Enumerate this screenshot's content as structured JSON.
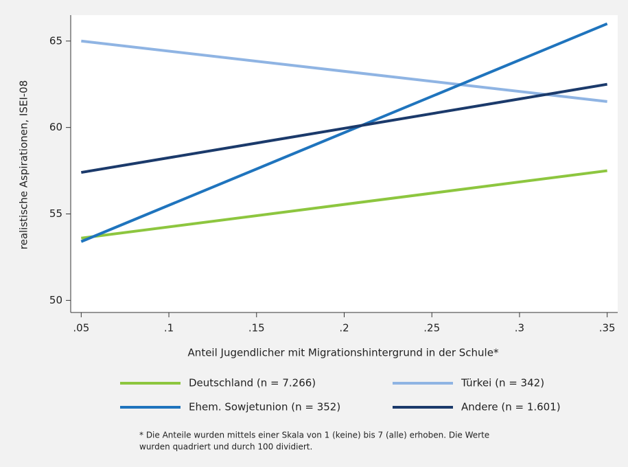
{
  "chart_data": {
    "type": "line",
    "ylabel": "realistische Aspirationen, ISEI-08",
    "xlabel": "Anteil Jugendlicher mit Migrationshintergrund in der Schule*",
    "x": [
      0.05,
      0.35
    ],
    "series": [
      {
        "name": "Deutschland (n = 7.266)",
        "color": "#8dc63f",
        "values": [
          53.6,
          57.5
        ]
      },
      {
        "name": "Türkei (n = 342)",
        "color": "#8fb4e3",
        "values": [
          65.0,
          61.5
        ]
      },
      {
        "name": "Ehem. Sowjetunion (n = 352)",
        "color": "#1f74bd",
        "values": [
          53.4,
          66.0
        ]
      },
      {
        "name": "Andere (n = 1.601)",
        "color": "#1b3a6b",
        "values": [
          57.4,
          62.5
        ]
      }
    ],
    "xlim": [
      0.044,
      0.356
    ],
    "xticks": [
      {
        "value": 0.05,
        "label": ".05"
      },
      {
        "value": 0.1,
        "label": ".1"
      },
      {
        "value": 0.15,
        "label": ".15"
      },
      {
        "value": 0.2,
        "label": ".2"
      },
      {
        "value": 0.25,
        "label": ".25"
      },
      {
        "value": 0.3,
        "label": ".3"
      },
      {
        "value": 0.35,
        "label": ".35"
      }
    ],
    "ylim": [
      49.3,
      66.5
    ],
    "yticks": [
      50,
      55,
      60,
      65
    ],
    "annotations": [
      "* Die Anteile wurden mittels einer Skala von 1 (keine) bis 7 (alle) erhoben. Die Werte",
      "wurden quadriert und durch 100 dividiert."
    ]
  }
}
